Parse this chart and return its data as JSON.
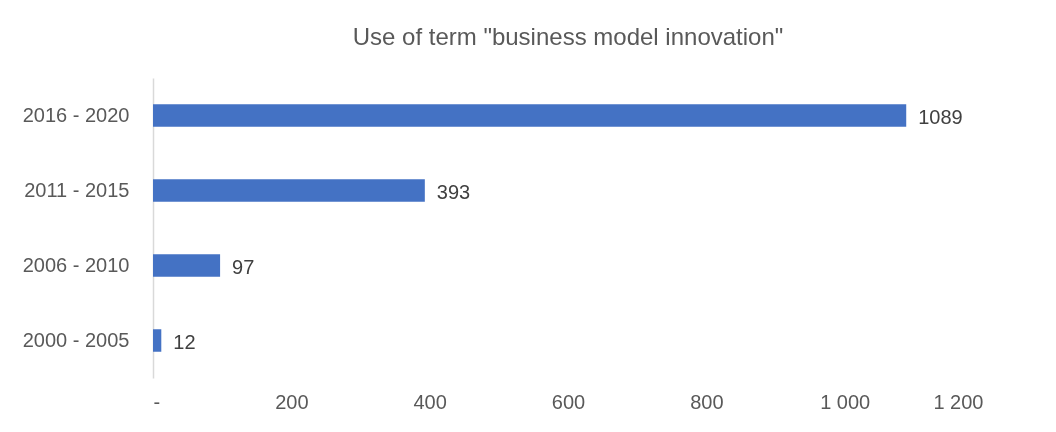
{
  "chart_data": {
    "type": "bar",
    "title": "Use of term \"business model innovation\"",
    "orientation": "horizontal",
    "categories": [
      "2016 - 2020",
      "2011 - 2015",
      "2006 - 2010",
      "2000 - 2005"
    ],
    "values": [
      1089,
      393,
      97,
      12
    ],
    "color": "#4472c4",
    "xlim": [
      0,
      1200
    ],
    "xticks": [
      {
        "value": 0,
        "label": "-"
      },
      200,
      400,
      600,
      800,
      {
        "value": 1000,
        "label": "1 000"
      },
      {
        "value": 1200,
        "label": "1 200"
      }
    ],
    "grid": false,
    "data_labels": true
  }
}
